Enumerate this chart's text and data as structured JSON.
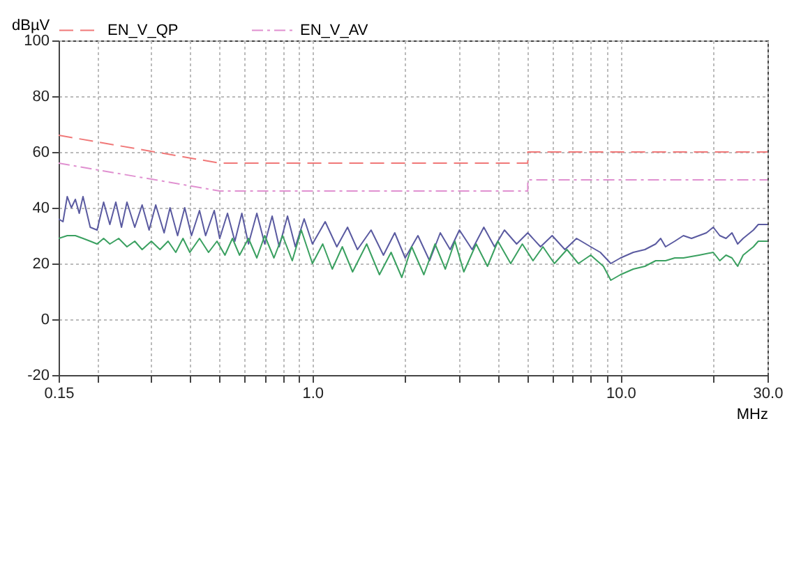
{
  "chart_data": {
    "type": "line",
    "xlabel": "MHz",
    "ylabel": "dBµV",
    "log": "x",
    "grid": true,
    "legend": "top",
    "xlim": [
      0.15,
      30
    ],
    "ylim": [
      -20,
      100
    ],
    "xticks": [
      {
        "value": 0.15,
        "label": "0.15"
      },
      {
        "value": 0.2,
        "label": null
      },
      {
        "value": 0.3,
        "label": null
      },
      {
        "value": 0.4,
        "label": null
      },
      {
        "value": 0.5,
        "label": null
      },
      {
        "value": 0.6,
        "label": null
      },
      {
        "value": 0.7,
        "label": null
      },
      {
        "value": 0.8,
        "label": null
      },
      {
        "value": 0.9,
        "label": null
      },
      {
        "value": 1,
        "label": "1.0"
      },
      {
        "value": 2,
        "label": null
      },
      {
        "value": 3,
        "label": null
      },
      {
        "value": 4,
        "label": null
      },
      {
        "value": 5,
        "label": null
      },
      {
        "value": 6,
        "label": null
      },
      {
        "value": 7,
        "label": null
      },
      {
        "value": 8,
        "label": null
      },
      {
        "value": 9,
        "label": null
      },
      {
        "value": 10,
        "label": "10.0"
      },
      {
        "value": 20,
        "label": null
      },
      {
        "value": 30,
        "label": "30.0"
      }
    ],
    "yticks": [
      -20,
      0,
      20,
      40,
      60,
      80,
      100
    ],
    "series": [
      {
        "name": "EN_V_QP",
        "color": "#f07878",
        "line_style": "dashed",
        "x": [
          0.15,
          0.5,
          5,
          5,
          30
        ],
        "values": [
          66,
          56,
          56,
          60,
          60
        ]
      },
      {
        "name": "EN_V_AV",
        "color": "#e090d0",
        "line_style": "dashdot",
        "x": [
          0.15,
          0.5,
          5,
          5,
          30
        ],
        "values": [
          56,
          46,
          46,
          50,
          50
        ]
      },
      {
        "color": "#5a5aa0",
        "line_style": "solid",
        "x": [
          0.15,
          0.155,
          0.16,
          0.165,
          0.17,
          0.175,
          0.18,
          0.19,
          0.2,
          0.21,
          0.22,
          0.23,
          0.24,
          0.25,
          0.265,
          0.28,
          0.295,
          0.31,
          0.33,
          0.345,
          0.365,
          0.385,
          0.405,
          0.43,
          0.45,
          0.48,
          0.5,
          0.53,
          0.56,
          0.59,
          0.62,
          0.66,
          0.7,
          0.74,
          0.78,
          0.83,
          0.88,
          0.94,
          1.0,
          1.1,
          1.2,
          1.3,
          1.4,
          1.55,
          1.7,
          1.85,
          2.0,
          2.2,
          2.4,
          2.6,
          2.8,
          3.0,
          3.3,
          3.6,
          3.9,
          4.2,
          4.6,
          5.0,
          5.5,
          6.0,
          6.6,
          7.2,
          8.0,
          8.6,
          9.3,
          10,
          11,
          12,
          13,
          13.5,
          14,
          15,
          16,
          17,
          19,
          20,
          21,
          22,
          23,
          24,
          25,
          27,
          28,
          30
        ],
        "values": [
          36,
          35,
          44,
          40,
          43,
          38,
          44,
          33,
          32,
          42,
          34,
          42,
          33,
          42,
          33,
          41,
          32,
          41,
          31,
          40,
          30,
          40,
          30,
          39,
          30,
          39,
          29,
          38,
          28,
          38,
          27,
          38,
          27,
          37,
          26,
          37,
          26,
          36,
          27,
          35,
          26,
          33,
          25,
          32,
          23,
          31,
          22,
          30,
          21,
          31,
          25,
          32,
          25,
          33,
          26,
          32,
          27,
          31,
          26,
          30,
          25,
          29,
          26,
          24,
          20,
          22,
          24,
          25,
          27,
          29,
          26,
          28,
          30,
          29,
          31,
          33,
          30,
          29,
          31,
          27,
          29,
          32,
          34,
          34
        ]
      },
      {
        "color": "#3aa060",
        "line_style": "solid",
        "x": [
          0.15,
          0.16,
          0.17,
          0.18,
          0.19,
          0.2,
          0.21,
          0.22,
          0.235,
          0.25,
          0.265,
          0.28,
          0.3,
          0.32,
          0.34,
          0.36,
          0.38,
          0.4,
          0.43,
          0.46,
          0.49,
          0.52,
          0.55,
          0.58,
          0.62,
          0.66,
          0.7,
          0.75,
          0.8,
          0.86,
          0.92,
          1.0,
          1.08,
          1.16,
          1.25,
          1.35,
          1.5,
          1.65,
          1.8,
          1.95,
          2.1,
          2.3,
          2.5,
          2.7,
          2.9,
          3.1,
          3.4,
          3.7,
          4.0,
          4.4,
          4.8,
          5.2,
          5.6,
          6.1,
          6.7,
          7.3,
          8.0,
          8.8,
          9.3,
          10,
          11,
          12,
          13,
          14,
          15,
          16,
          18,
          20,
          21,
          22,
          23,
          24,
          25,
          27,
          28,
          30
        ],
        "values": [
          29,
          30,
          30,
          29,
          28,
          27,
          29,
          27,
          29,
          26,
          28,
          25,
          28,
          25,
          28,
          24,
          29,
          24,
          29,
          24,
          28,
          23,
          29,
          23,
          29,
          22,
          30,
          22,
          30,
          21,
          32,
          20,
          27,
          18,
          26,
          17,
          27,
          16,
          24,
          15,
          26,
          16,
          27,
          18,
          28,
          17,
          27,
          19,
          28,
          20,
          27,
          21,
          26,
          20,
          25,
          20,
          23,
          19,
          14,
          16,
          18,
          19,
          21,
          21,
          22,
          22,
          23,
          24,
          21,
          23,
          22,
          19,
          23,
          26,
          28,
          28
        ]
      }
    ]
  }
}
